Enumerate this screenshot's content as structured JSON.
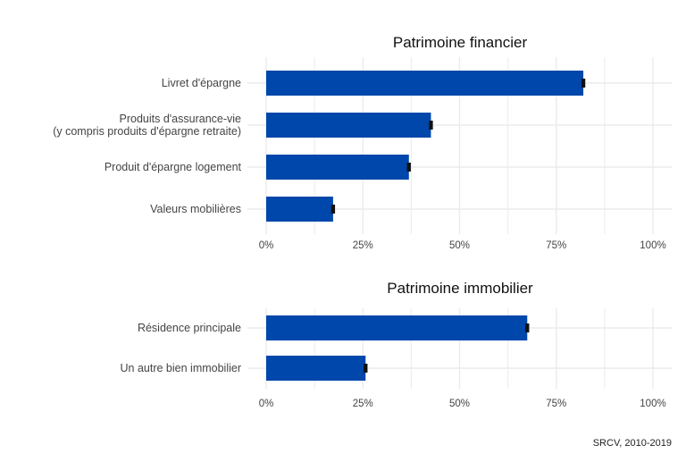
{
  "colors": {
    "bar": "#0047ab",
    "error": "#111111",
    "grid": "#ebebeb"
  },
  "caption": "SRCV, 2010-2019",
  "chart_data": [
    {
      "type": "bar",
      "orientation": "horizontal",
      "title": "Patrimoine financier",
      "categories": [
        [
          "Livret d'épargne"
        ],
        [
          "Produits d'assurance-vie",
          "(y compris produits d'épargne retraite)"
        ],
        [
          "Produit d'épargne logement"
        ],
        [
          "Valeurs mobilières"
        ]
      ],
      "values": [
        82,
        42.6,
        36.9,
        17.3
      ],
      "errors": [
        0.5,
        0.5,
        0.5,
        0.5
      ],
      "xlim": [
        0,
        100
      ],
      "ticks": [
        0,
        25,
        50,
        75,
        100
      ],
      "tick_labels": [
        "0%",
        "25%",
        "50%",
        "75%",
        "100%"
      ],
      "grid": true
    },
    {
      "type": "bar",
      "orientation": "horizontal",
      "title": "Patrimoine immobilier",
      "categories": [
        [
          "Résidence principale"
        ],
        [
          "Un autre bien immobilier"
        ]
      ],
      "values": [
        67.5,
        25.7
      ],
      "errors": [
        0.5,
        0.5
      ],
      "xlim": [
        0,
        100
      ],
      "ticks": [
        0,
        25,
        50,
        75,
        100
      ],
      "tick_labels": [
        "0%",
        "25%",
        "50%",
        "75%",
        "100%"
      ],
      "grid": true
    }
  ]
}
